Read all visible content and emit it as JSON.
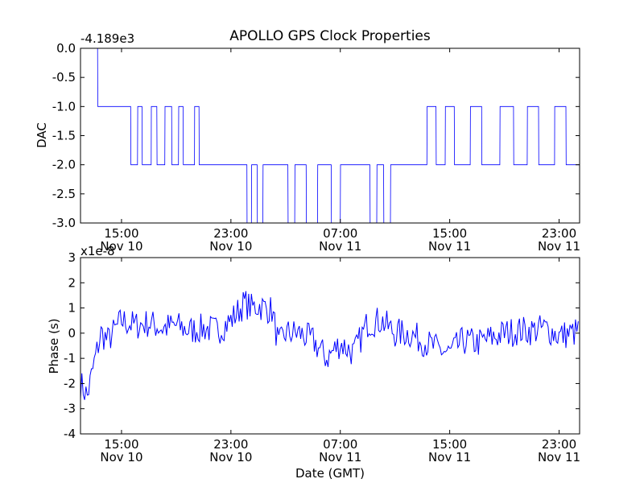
{
  "chart_data": [
    {
      "type": "line",
      "title": "APOLLO GPS Clock Properties",
      "ylabel": "DAC",
      "offset_label": "-4.189e3",
      "ylim": [
        -3.0,
        0.0
      ],
      "yticks": [
        "0.0",
        "-0.5",
        "-1.0",
        "-1.5",
        "-2.0",
        "-2.5",
        "-3.0"
      ],
      "xlim": [
        "2013-11-10T12:00",
        "2013-11-12T00:30"
      ],
      "xticks": [
        {
          "time": "15:00",
          "date": "Nov 10"
        },
        {
          "time": "23:00",
          "date": "Nov 10"
        },
        {
          "time": "07:00",
          "date": "Nov 11"
        },
        {
          "time": "15:00",
          "date": "Nov 11"
        },
        {
          "time": "23:00",
          "date": "Nov 11"
        }
      ],
      "series": [
        {
          "color": "#0000ff",
          "x": [
            "2013-11-10T12:00",
            "2013-11-10T13:15",
            "2013-11-10T13:16",
            "2013-11-10T15:40",
            "2013-11-10T15:41",
            "2013-11-10T16:10",
            "2013-11-10T16:11",
            "2013-11-10T16:30",
            "2013-11-10T16:31",
            "2013-11-10T17:10",
            "2013-11-10T17:11",
            "2013-11-10T17:35",
            "2013-11-10T17:36",
            "2013-11-10T18:10",
            "2013-11-10T18:11",
            "2013-11-10T18:40",
            "2013-11-10T18:41",
            "2013-11-10T19:10",
            "2013-11-10T19:11",
            "2013-11-10T19:30",
            "2013-11-10T19:31",
            "2013-11-10T20:20",
            "2013-11-10T20:21",
            "2013-11-10T20:40",
            "2013-11-10T20:41",
            "2013-11-10T21:10",
            "2013-11-10T21:11",
            "2013-11-11T00:10",
            "2013-11-11T00:11",
            "2013-11-11T00:30",
            "2013-11-11T00:31",
            "2013-11-11T00:55",
            "2013-11-11T00:56",
            "2013-11-11T01:20",
            "2013-11-11T01:21",
            "2013-11-11T03:10",
            "2013-11-11T03:11",
            "2013-11-11T03:40",
            "2013-11-11T03:41",
            "2013-11-11T04:30",
            "2013-11-11T04:31",
            "2013-11-11T05:20",
            "2013-11-11T05:21",
            "2013-11-11T06:20",
            "2013-11-11T06:21",
            "2013-11-11T07:00",
            "2013-11-11T07:01",
            "2013-11-11T09:10",
            "2013-11-11T09:11",
            "2013-11-11T09:40",
            "2013-11-11T09:41",
            "2013-11-11T10:10",
            "2013-11-11T10:11",
            "2013-11-11T10:40",
            "2013-11-11T10:41",
            "2013-11-11T11:20",
            "2013-11-11T11:21",
            "2013-11-11T13:20",
            "2013-11-11T13:21",
            "2013-11-11T14:00",
            "2013-11-11T14:01",
            "2013-11-11T14:40",
            "2013-11-11T14:41",
            "2013-11-11T15:20",
            "2013-11-11T15:21",
            "2013-11-11T16:30",
            "2013-11-11T16:31",
            "2013-11-11T17:20",
            "2013-11-11T17:21",
            "2013-11-11T18:40",
            "2013-11-11T18:41",
            "2013-11-11T19:40",
            "2013-11-11T19:41",
            "2013-11-11T20:40",
            "2013-11-11T20:41",
            "2013-11-11T21:30",
            "2013-11-11T21:31",
            "2013-11-11T22:40",
            "2013-11-11T22:41",
            "2013-11-11T23:30",
            "2013-11-11T23:31",
            "2013-11-12T00:30"
          ],
          "y": [
            0,
            0,
            -1,
            -1,
            -2,
            -2,
            -1,
            -1,
            -2,
            -2,
            -1,
            -1,
            -2,
            -2,
            -1,
            -1,
            -2,
            -2,
            -1,
            -1,
            -2,
            -2,
            -1,
            -1,
            -2,
            -2,
            -2,
            -2,
            -3,
            -3,
            -2,
            -2,
            -3,
            -3,
            -2,
            -2,
            -3,
            -3,
            -2,
            -2,
            -3,
            -3,
            -2,
            -2,
            -3,
            -3,
            -2,
            -2,
            -3,
            -3,
            -2,
            -2,
            -3,
            -3,
            -2,
            -2,
            -2,
            -2,
            -1,
            -1,
            -2,
            -2,
            -1,
            -1,
            -2,
            -2,
            -1,
            -1,
            -2,
            -2,
            -1,
            -1,
            -2,
            -2,
            -1,
            -1,
            -2,
            -2,
            -1,
            -1,
            -2,
            -2
          ]
        }
      ]
    },
    {
      "type": "line",
      "ylabel": "Phase (s)",
      "xlabel": "Date (GMT)",
      "offset_label": "x1e-8",
      "ylim": [
        -4,
        3
      ],
      "yticks": [
        "3",
        "2",
        "1",
        "0",
        "-1",
        "-2",
        "-3",
        "-4"
      ],
      "xlim": [
        "2013-11-10T12:00",
        "2013-11-12T00:30"
      ],
      "xticks": [
        {
          "time": "15:00",
          "date": "Nov 10"
        },
        {
          "time": "23:00",
          "date": "Nov 10"
        },
        {
          "time": "07:00",
          "date": "Nov 11"
        },
        {
          "time": "15:00",
          "date": "Nov 11"
        },
        {
          "time": "23:00",
          "date": "Nov 11"
        }
      ],
      "series": [
        {
          "color": "#0000ff",
          "x": [
            "2013-11-10T12:00",
            "2013-11-10T12:30",
            "2013-11-10T13:00",
            "2013-11-10T13:30",
            "2013-11-10T14:00",
            "2013-11-10T15:00",
            "2013-11-10T16:00",
            "2013-11-10T17:00",
            "2013-11-10T18:00",
            "2013-11-10T19:00",
            "2013-11-10T20:00",
            "2013-11-10T21:00",
            "2013-11-10T22:00",
            "2013-11-10T23:00",
            "2013-11-11T00:00",
            "2013-11-11T00:30",
            "2013-11-11T01:00",
            "2013-11-11T02:00",
            "2013-11-11T02:30",
            "2013-11-11T03:00",
            "2013-11-11T04:00",
            "2013-11-11T05:00",
            "2013-11-11T06:00",
            "2013-11-11T07:00",
            "2013-11-11T08:00",
            "2013-11-11T09:00",
            "2013-11-11T10:00",
            "2013-11-11T11:00",
            "2013-11-11T12:00",
            "2013-11-11T13:00",
            "2013-11-11T14:00",
            "2013-11-11T15:00",
            "2013-11-11T16:00",
            "2013-11-11T17:00",
            "2013-11-11T18:00",
            "2013-11-11T19:00",
            "2013-11-11T20:00",
            "2013-11-11T21:00",
            "2013-11-11T22:00",
            "2013-11-11T23:00",
            "2013-11-12T00:00",
            "2013-11-12T00:30"
          ],
          "y": [
            -2.0,
            -2.5,
            -1.2,
            0.0,
            -0.3,
            0.5,
            0.3,
            0.4,
            0.2,
            0.3,
            0.1,
            0.2,
            0.1,
            0.5,
            1.2,
            1.0,
            1.1,
            0.9,
            -0.5,
            0.0,
            0.0,
            -0.3,
            -1.0,
            -0.4,
            -0.8,
            0.4,
            0.5,
            0.0,
            0.0,
            -0.3,
            -0.6,
            -0.8,
            -0.3,
            -0.4,
            -0.2,
            0.0,
            0.1,
            0.1,
            0.2,
            -0.1,
            0.0,
            0.1
          ]
        }
      ]
    }
  ]
}
